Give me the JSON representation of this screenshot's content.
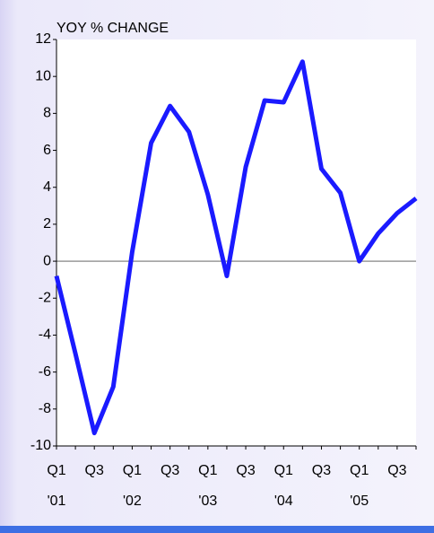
{
  "chart_data": {
    "type": "line",
    "y_label": "YOY % CHANGE",
    "categories": [
      "Q1 '01",
      null,
      "Q3",
      null,
      "Q1 '02",
      null,
      "Q3",
      null,
      "Q1 '03",
      null,
      "Q3",
      null,
      "Q1 '04",
      null,
      "Q3",
      null,
      "Q1 '05",
      null,
      "Q3",
      null
    ],
    "series": [
      {
        "color": "#1a1aff",
        "values": [
          -0.8,
          -5.0,
          -9.3,
          -6.8,
          0.5,
          6.4,
          8.4,
          7.0,
          3.6,
          -0.8,
          5.1,
          8.7,
          8.6,
          10.8,
          5.0,
          3.7,
          0.0,
          1.5,
          2.6,
          3.4
        ]
      }
    ],
    "ylim": [
      -10,
      12
    ],
    "yticks": [
      -10,
      -8,
      -6,
      -4,
      -2,
      0,
      2,
      4,
      6,
      8,
      10,
      12
    ],
    "zero_line": true
  }
}
